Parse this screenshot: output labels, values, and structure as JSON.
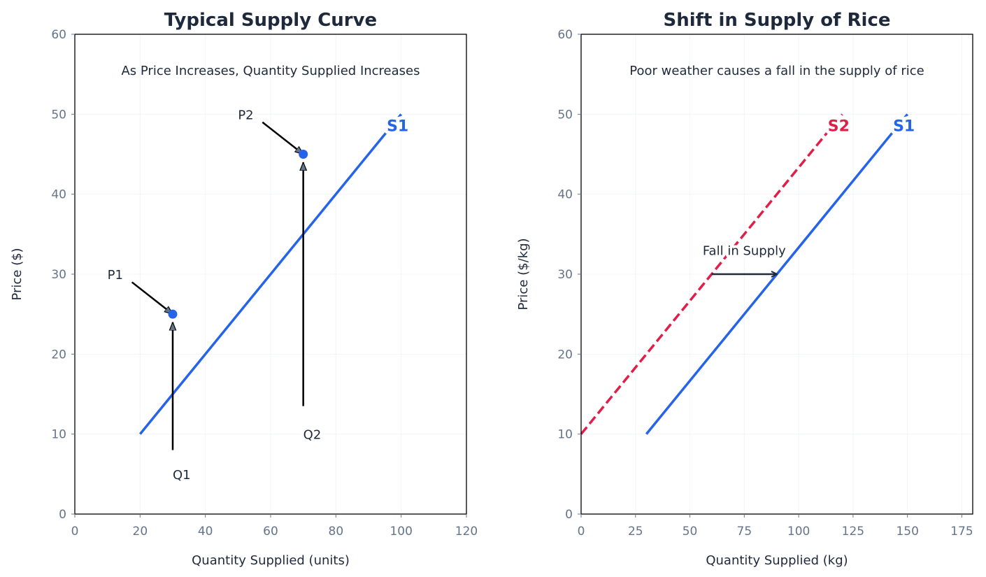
{
  "chart_data": [
    {
      "type": "line",
      "title": "Typical Supply Curve",
      "subtitle": "As Price Increases, Quantity Supplied Increases",
      "xlabel": "Quantity Supplied (units)",
      "ylabel": "Price ($)",
      "xlim": [
        0,
        120
      ],
      "ylim": [
        0,
        60
      ],
      "xticks": [
        0,
        20,
        40,
        60,
        80,
        100,
        120
      ],
      "yticks": [
        0,
        10,
        20,
        30,
        40,
        50,
        60
      ],
      "grid": true,
      "series": [
        {
          "name": "S1",
          "x": [
            20,
            100
          ],
          "y": [
            10,
            50
          ],
          "color": "#2563eb",
          "style": "solid"
        }
      ],
      "points": [
        {
          "x": 30,
          "y": 25,
          "color": "#2563eb"
        },
        {
          "x": 70,
          "y": 45,
          "color": "#2563eb"
        }
      ],
      "annotations": [
        {
          "text": "P1",
          "text_x": 10,
          "text_y": 30,
          "arrow_from": [
            17.5,
            29
          ],
          "arrow_to": [
            30,
            25
          ]
        },
        {
          "text": "P2",
          "text_x": 50,
          "text_y": 50,
          "arrow_from": [
            57.5,
            49
          ],
          "arrow_to": [
            70,
            45
          ]
        },
        {
          "text": "Q1",
          "text_x": 30,
          "text_y": 5,
          "arrow_from": [
            30,
            8
          ],
          "arrow_to": [
            30,
            24
          ]
        },
        {
          "text": "Q2",
          "text_x": 70,
          "text_y": 10,
          "arrow_from": [
            70,
            13.5
          ],
          "arrow_to": [
            70,
            44
          ]
        }
      ]
    },
    {
      "type": "line",
      "title": "Shift in Supply of Rice",
      "subtitle": "Poor weather causes a fall in the supply of rice",
      "xlabel": "Quantity Supplied (kg)",
      "ylabel": "Price ($/kg)",
      "xlim": [
        0,
        180
      ],
      "ylim": [
        0,
        60
      ],
      "xticks": [
        0,
        25,
        50,
        75,
        100,
        125,
        150,
        175
      ],
      "yticks": [
        0,
        10,
        20,
        30,
        40,
        50,
        60
      ],
      "grid": true,
      "series": [
        {
          "name": "S1",
          "x": [
            30,
            150
          ],
          "y": [
            10,
            50
          ],
          "color": "#2563eb",
          "style": "solid"
        },
        {
          "name": "S2",
          "x": [
            0,
            120
          ],
          "y": [
            10,
            50
          ],
          "color": "#e11d48",
          "style": "dashed"
        }
      ],
      "points": [],
      "annotations": [
        {
          "text": "Fall in Supply",
          "text_x": 75,
          "text_y": 33,
          "arrow_from": [
            60,
            30
          ],
          "arrow_to": [
            90,
            30
          ]
        }
      ]
    }
  ]
}
